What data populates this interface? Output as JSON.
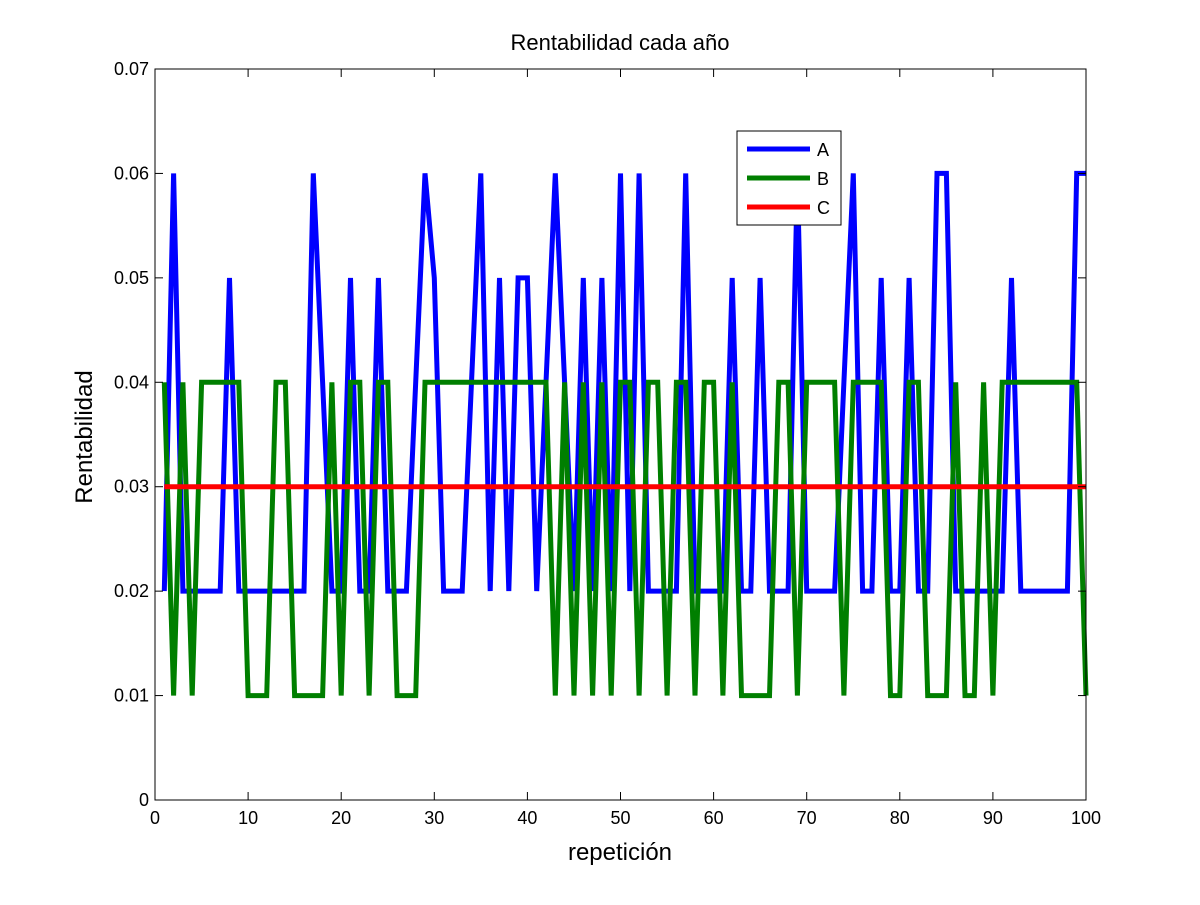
{
  "chart_data": {
    "type": "line",
    "title": "Rentabilidad cada año",
    "xlabel": "repetición",
    "ylabel": "Rentabilidad",
    "xlim": [
      0,
      100
    ],
    "ylim": [
      0,
      0.07
    ],
    "xticks": [
      0,
      10,
      20,
      30,
      40,
      50,
      60,
      70,
      80,
      90,
      100
    ],
    "xtick_labels": [
      "0",
      "10",
      "20",
      "30",
      "40",
      "50",
      "60",
      "70",
      "80",
      "90",
      "100"
    ],
    "yticks": [
      0,
      0.01,
      0.02,
      0.03,
      0.04,
      0.05,
      0.06,
      0.07
    ],
    "ytick_labels": [
      "0",
      "0.01",
      "0.02",
      "0.03",
      "0.04",
      "0.05",
      "0.06",
      "0.07"
    ],
    "grid": false,
    "legend_position": "top-right-inside",
    "x": [
      1,
      2,
      3,
      4,
      5,
      6,
      7,
      8,
      9,
      10,
      11,
      12,
      13,
      14,
      15,
      16,
      17,
      18,
      19,
      20,
      21,
      22,
      23,
      24,
      25,
      26,
      27,
      28,
      29,
      30,
      31,
      32,
      33,
      34,
      35,
      36,
      37,
      38,
      39,
      40,
      41,
      42,
      43,
      44,
      45,
      46,
      47,
      48,
      49,
      50,
      51,
      52,
      53,
      54,
      55,
      56,
      57,
      58,
      59,
      60,
      61,
      62,
      63,
      64,
      65,
      66,
      67,
      68,
      69,
      70,
      71,
      72,
      73,
      74,
      75,
      76,
      77,
      78,
      79,
      80,
      81,
      82,
      83,
      84,
      85,
      86,
      87,
      88,
      89,
      90,
      91,
      92,
      93,
      94,
      95,
      96,
      97,
      98,
      99,
      100
    ],
    "series": [
      {
        "name": "A",
        "color": "#0000ff",
        "values": [
          0.02,
          0.06,
          0.02,
          0.02,
          0.02,
          0.02,
          0.02,
          0.05,
          0.02,
          0.02,
          0.02,
          0.02,
          0.02,
          0.02,
          0.02,
          0.02,
          0.06,
          0.04,
          0.02,
          0.02,
          0.05,
          0.02,
          0.02,
          0.05,
          0.02,
          0.02,
          0.02,
          0.04,
          0.06,
          0.05,
          0.02,
          0.02,
          0.02,
          0.04,
          0.06,
          0.02,
          0.05,
          0.02,
          0.05,
          0.05,
          0.02,
          0.04,
          0.06,
          0.04,
          0.02,
          0.05,
          0.02,
          0.05,
          0.02,
          0.06,
          0.02,
          0.06,
          0.02,
          0.02,
          0.02,
          0.02,
          0.06,
          0.02,
          0.02,
          0.02,
          0.02,
          0.05,
          0.02,
          0.02,
          0.05,
          0.02,
          0.02,
          0.02,
          0.06,
          0.02,
          0.02,
          0.02,
          0.02,
          0.04,
          0.06,
          0.02,
          0.02,
          0.05,
          0.02,
          0.02,
          0.05,
          0.02,
          0.02,
          0.06,
          0.06,
          0.02,
          0.02,
          0.02,
          0.02,
          0.02,
          0.02,
          0.05,
          0.02,
          0.02,
          0.02,
          0.02,
          0.02,
          0.02,
          0.06,
          0.06
        ]
      },
      {
        "name": "B",
        "color": "#007f00",
        "values": [
          0.04,
          0.01,
          0.04,
          0.01,
          0.04,
          0.04,
          0.04,
          0.04,
          0.04,
          0.01,
          0.01,
          0.01,
          0.04,
          0.04,
          0.01,
          0.01,
          0.01,
          0.01,
          0.04,
          0.01,
          0.04,
          0.04,
          0.01,
          0.04,
          0.04,
          0.01,
          0.01,
          0.01,
          0.04,
          0.04,
          0.04,
          0.04,
          0.04,
          0.04,
          0.04,
          0.04,
          0.04,
          0.04,
          0.04,
          0.04,
          0.04,
          0.04,
          0.01,
          0.04,
          0.01,
          0.04,
          0.01,
          0.04,
          0.01,
          0.04,
          0.04,
          0.01,
          0.04,
          0.04,
          0.01,
          0.04,
          0.04,
          0.01,
          0.04,
          0.04,
          0.01,
          0.04,
          0.01,
          0.01,
          0.01,
          0.01,
          0.04,
          0.04,
          0.01,
          0.04,
          0.04,
          0.04,
          0.04,
          0.01,
          0.04,
          0.04,
          0.04,
          0.04,
          0.01,
          0.01,
          0.04,
          0.04,
          0.01,
          0.01,
          0.01,
          0.04,
          0.01,
          0.01,
          0.04,
          0.01,
          0.04,
          0.04,
          0.04,
          0.04,
          0.04,
          0.04,
          0.04,
          0.04,
          0.04,
          0.01
        ]
      },
      {
        "name": "C",
        "color": "#ff0000",
        "values": [
          0.03,
          0.03,
          0.03,
          0.03,
          0.03,
          0.03,
          0.03,
          0.03,
          0.03,
          0.03,
          0.03,
          0.03,
          0.03,
          0.03,
          0.03,
          0.03,
          0.03,
          0.03,
          0.03,
          0.03,
          0.03,
          0.03,
          0.03,
          0.03,
          0.03,
          0.03,
          0.03,
          0.03,
          0.03,
          0.03,
          0.03,
          0.03,
          0.03,
          0.03,
          0.03,
          0.03,
          0.03,
          0.03,
          0.03,
          0.03,
          0.03,
          0.03,
          0.03,
          0.03,
          0.03,
          0.03,
          0.03,
          0.03,
          0.03,
          0.03,
          0.03,
          0.03,
          0.03,
          0.03,
          0.03,
          0.03,
          0.03,
          0.03,
          0.03,
          0.03,
          0.03,
          0.03,
          0.03,
          0.03,
          0.03,
          0.03,
          0.03,
          0.03,
          0.03,
          0.03,
          0.03,
          0.03,
          0.03,
          0.03,
          0.03,
          0.03,
          0.03,
          0.03,
          0.03,
          0.03,
          0.03,
          0.03,
          0.03,
          0.03,
          0.03,
          0.03,
          0.03,
          0.03,
          0.03,
          0.03,
          0.03,
          0.03,
          0.03,
          0.03,
          0.03,
          0.03,
          0.03,
          0.03,
          0.03,
          0.03
        ]
      }
    ]
  }
}
